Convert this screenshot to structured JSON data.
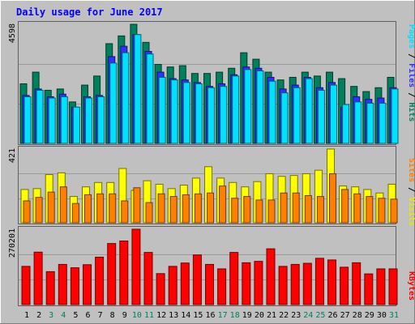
{
  "chart_data": {
    "type": "bar",
    "title": "Daily usage for June 2017",
    "categories": [
      "1",
      "2",
      "3",
      "4",
      "5",
      "6",
      "7",
      "8",
      "9",
      "10",
      "11",
      "12",
      "13",
      "14",
      "15",
      "16",
      "17",
      "18",
      "19",
      "20",
      "21",
      "22",
      "23",
      "24",
      "25",
      "26",
      "27",
      "28",
      "29",
      "30",
      "31"
    ],
    "weekend_days": [
      3,
      4,
      10,
      11,
      17,
      18,
      24,
      25,
      31
    ],
    "panels": [
      {
        "name": "hits-files-pages",
        "max_label": "4598",
        "ymax": 4598,
        "right_labels": [
          "Pages",
          "Files",
          "Hits"
        ],
        "series": [
          {
            "name": "Hits",
            "color": "#00805c",
            "values": [
              2300,
              2750,
              2050,
              2100,
              1600,
              2250,
              2600,
              3850,
              4150,
              4598,
              3900,
              3050,
              2950,
              3000,
              2700,
              2700,
              2750,
              2900,
              3500,
              3250,
              2750,
              2450,
              2550,
              2750,
              2600,
              2750,
              2500,
              2200,
              2000,
              2150,
              2550
            ]
          },
          {
            "name": "Files",
            "color": "#3030ff",
            "values": [
              1850,
              2100,
              1800,
              1900,
              1400,
              1800,
              1850,
              3350,
              3750,
              4200,
              3550,
              2750,
              2500,
              2450,
              2350,
              2200,
              2300,
              2650,
              2950,
              2900,
              2550,
              2100,
              2250,
              2550,
              2150,
              2350,
              1400,
              1800,
              1700,
              1750,
              2150
            ]
          },
          {
            "name": "Pages",
            "color": "#00e0ff",
            "values": [
              1800,
              2050,
              1750,
              1800,
              1400,
              1750,
              1800,
              3100,
              3500,
              4200,
              3450,
              2550,
              2450,
              2350,
              2300,
              2150,
              2200,
              2600,
              2850,
              2800,
              2400,
              1950,
              2150,
              2500,
              2050,
              2250,
              1500,
              1600,
              1550,
              1550,
              2100
            ]
          }
        ]
      },
      {
        "name": "visits-sites",
        "max_label": "421",
        "ymax": 421,
        "right_labels": [
          "Sites",
          "Visits"
        ],
        "series": [
          {
            "name": "Visits",
            "color": "#ffff00",
            "values": [
              190,
              195,
              275,
              285,
              150,
              205,
              230,
              230,
              310,
              185,
              240,
              220,
              195,
              215,
              255,
              320,
              255,
              230,
              205,
              235,
              280,
              265,
              270,
              280,
              300,
              421,
              210,
              205,
              190,
              170,
              220
            ]
          },
          {
            "name": "Sites",
            "color": "#ff8000",
            "values": [
              125,
              145,
              175,
              205,
              110,
              160,
              165,
              165,
              125,
              200,
              115,
              165,
              150,
              160,
              165,
              170,
              210,
              140,
              150,
              130,
              130,
              170,
              170,
              155,
              150,
              280,
              190,
              165,
              150,
              140,
              135
            ]
          }
        ]
      },
      {
        "name": "kbytes",
        "max_label": "270201",
        "ymax": 270201,
        "right_labels": [
          "KBytes"
        ],
        "series": [
          {
            "name": "KBytes",
            "color": "#ff0000",
            "values": [
              137000,
              188000,
              118000,
              144000,
              132000,
              143000,
              170000,
              219000,
              228000,
              270201,
              187000,
              111000,
              137000,
              149000,
              178000,
              144000,
              128000,
              187000,
              150000,
              155000,
              200000,
              137000,
              144000,
              148000,
              166000,
              160000,
              134000,
              150000,
              110000,
              128000,
              128000
            ]
          }
        ]
      }
    ]
  }
}
